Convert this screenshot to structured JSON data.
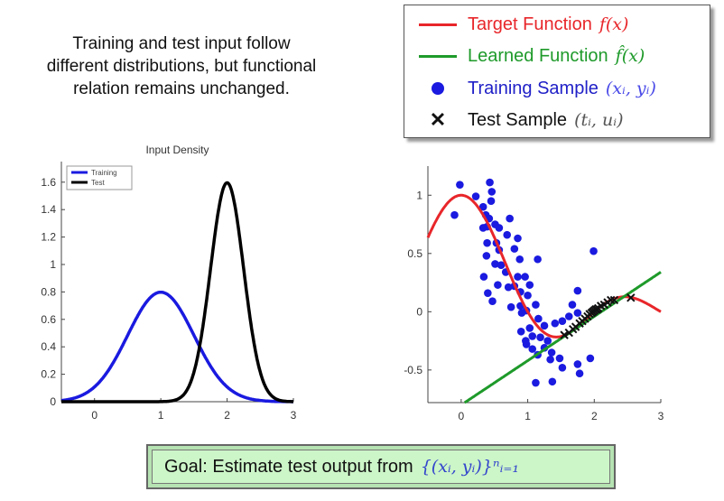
{
  "headline": [
    "Training and test input follow",
    "different distributions, but functional",
    "relation remains unchanged."
  ],
  "legend": {
    "target": {
      "label": "Target Function",
      "math": "f(x)",
      "color": "#e8262a"
    },
    "learned": {
      "label": "Learned Function",
      "math": "f̂(x)",
      "color": "#1e9a2a"
    },
    "training": {
      "label": "Training Sample",
      "math": "(xᵢ, yᵢ)",
      "color": "#1a1ae0"
    },
    "test": {
      "label": "Test Sample",
      "math": "(tᵢ, uᵢ)",
      "color": "#111111"
    }
  },
  "goal": {
    "label": "Goal: Estimate test output from",
    "math": "{(xᵢ, yᵢ)}ⁿᵢ₌₁"
  },
  "chart_data": [
    {
      "type": "line",
      "title": "Input Density",
      "xlim": [
        -0.5,
        3
      ],
      "ylim": [
        0,
        1.75
      ],
      "xticks": [
        0,
        1,
        2,
        3
      ],
      "yticks": [
        0,
        0.2,
        0.4,
        0.6,
        0.8,
        1,
        1.2,
        1.4,
        1.6
      ],
      "legend_position": "top-left",
      "series": [
        {
          "name": "Training",
          "distribution": "normal",
          "mean": 1,
          "std": 0.5,
          "color": "#1a1ae0"
        },
        {
          "name": "Test",
          "distribution": "normal",
          "mean": 2,
          "std": 0.25,
          "color": "#000000"
        }
      ]
    },
    {
      "type": "scatter",
      "xlim": [
        -0.5,
        3
      ],
      "ylim": [
        -0.78,
        1.25
      ],
      "xticks": [
        0,
        1,
        2,
        3
      ],
      "yticks": [
        -0.5,
        0,
        0.5,
        1
      ],
      "target_function": {
        "name": "Target Function",
        "form": "sinc",
        "color": "#e8262a"
      },
      "learned_function": {
        "name": "Learned Function",
        "form": "linear",
        "intercept": -0.8,
        "slope": 0.38,
        "color": "#1e9a2a"
      },
      "training_samples": [
        [
          -0.02,
          1.09
        ],
        [
          -0.1,
          0.83
        ],
        [
          0.22,
          0.99
        ],
        [
          0.43,
          1.11
        ],
        [
          0.46,
          1.03
        ],
        [
          0.45,
          0.95
        ],
        [
          0.33,
          0.9
        ],
        [
          0.37,
          0.83
        ],
        [
          0.42,
          0.8
        ],
        [
          0.33,
          0.72
        ],
        [
          0.39,
          0.73
        ],
        [
          0.51,
          0.75
        ],
        [
          0.57,
          0.72
        ],
        [
          0.73,
          0.8
        ],
        [
          0.39,
          0.59
        ],
        [
          0.53,
          0.59
        ],
        [
          0.69,
          0.66
        ],
        [
          0.85,
          0.63
        ],
        [
          0.38,
          0.48
        ],
        [
          0.57,
          0.53
        ],
        [
          0.8,
          0.54
        ],
        [
          0.88,
          0.45
        ],
        [
          0.51,
          0.41
        ],
        [
          0.6,
          0.4
        ],
        [
          1.15,
          0.45
        ],
        [
          0.34,
          0.3
        ],
        [
          0.67,
          0.34
        ],
        [
          0.85,
          0.3
        ],
        [
          0.96,
          0.3
        ],
        [
          0.71,
          0.21
        ],
        [
          0.8,
          0.22
        ],
        [
          0.55,
          0.23
        ],
        [
          1.03,
          0.23
        ],
        [
          0.4,
          0.16
        ],
        [
          0.89,
          0.17
        ],
        [
          1.0,
          0.14
        ],
        [
          0.47,
          0.09
        ],
        [
          0.75,
          0.04
        ],
        [
          0.89,
          0.05
        ],
        [
          1.12,
          0.06
        ],
        [
          0.91,
          -0.01
        ],
        [
          0.98,
          0.01
        ],
        [
          1.75,
          0.18
        ],
        [
          1.67,
          0.06
        ],
        [
          1.75,
          -0.01
        ],
        [
          1.62,
          -0.04
        ],
        [
          1.52,
          -0.08
        ],
        [
          1.41,
          -0.1
        ],
        [
          1.16,
          -0.06
        ],
        [
          1.25,
          -0.12
        ],
        [
          1.03,
          -0.14
        ],
        [
          0.9,
          -0.17
        ],
        [
          1.07,
          -0.21
        ],
        [
          1.19,
          -0.22
        ],
        [
          1.3,
          -0.25
        ],
        [
          0.97,
          -0.25
        ],
        [
          0.98,
          -0.28
        ],
        [
          1.07,
          -0.32
        ],
        [
          1.15,
          -0.37
        ],
        [
          1.25,
          -0.31
        ],
        [
          1.36,
          -0.35
        ],
        [
          1.34,
          -0.41
        ],
        [
          1.48,
          -0.4
        ],
        [
          1.52,
          -0.48
        ],
        [
          1.75,
          -0.45
        ],
        [
          1.78,
          -0.53
        ],
        [
          1.94,
          -0.4
        ],
        [
          1.12,
          -0.61
        ],
        [
          1.37,
          -0.6
        ],
        [
          1.99,
          0.52
        ]
      ],
      "test_samples": [
        [
          1.55,
          -0.2
        ],
        [
          1.62,
          -0.18
        ],
        [
          1.68,
          -0.15
        ],
        [
          1.72,
          -0.13
        ],
        [
          1.78,
          -0.1
        ],
        [
          1.82,
          -0.08
        ],
        [
          1.86,
          -0.06
        ],
        [
          1.9,
          -0.04
        ],
        [
          1.93,
          -0.02
        ],
        [
          1.96,
          -0.01
        ],
        [
          1.98,
          0.0
        ],
        [
          2.0,
          0.01
        ],
        [
          2.02,
          0.02
        ],
        [
          2.04,
          0.02
        ],
        [
          2.06,
          0.03
        ],
        [
          2.1,
          0.05
        ],
        [
          2.15,
          0.06
        ],
        [
          2.2,
          0.08
        ],
        [
          2.25,
          0.1
        ],
        [
          2.3,
          0.1
        ],
        [
          2.55,
          0.12
        ]
      ]
    }
  ]
}
